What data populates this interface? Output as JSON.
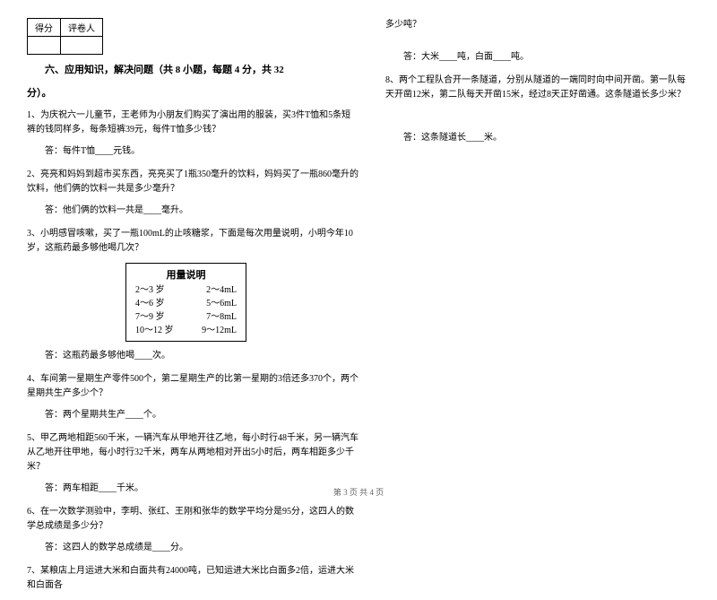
{
  "scoreTable": {
    "col1": "得分",
    "col2": "评卷人"
  },
  "sectionTitle": "六、应用知识，解决问题（共 8 小题，每题 4 分，共 32",
  "pointsNote": "分）。",
  "q1": "1、为庆祝六一儿童节，王老师为小朋友们购买了演出用的服装，买3件T恤和5条短裤的钱同样多，每条短裤39元，每件T恤多少钱？",
  "a1": "答：每件T恤____元钱。",
  "q2": "2、亮亮和妈妈到超市买东西，亮亮买了1瓶350毫升的饮料，妈妈买了一瓶860毫升的饮料，他们俩的饮料一共是多少毫升？",
  "a2": "答：他们俩的饮料一共是____毫升。",
  "q3": "3、小明感冒咳嗽，买了一瓶100mL的止咳糖浆，下面是每次用量说明，小明今年10岁，这瓶药最多够他喝几次？",
  "dosage": {
    "title": "用量说明",
    "rows": [
      {
        "age": "2～3 岁",
        "amount": "2～4mL"
      },
      {
        "age": "4～6 岁",
        "amount": "5～6mL"
      },
      {
        "age": "7～9 岁",
        "amount": "7～8mL"
      },
      {
        "age": "10～12 岁",
        "amount": "9～12mL"
      }
    ]
  },
  "a3": "答：这瓶药最多够他喝____次。",
  "q4": "4、车间第一星期生产零件500个，第二星期生产的比第一星期的3倍还多370个，两个星期共生产多少个？",
  "a4": "答：两个星期共生产____个。",
  "q5": "5、甲乙两地相距560千米，一辆汽车从甲地开往乙地，每小时行48千米，另一辆汽车从乙地开往甲地，每小时行32千米，两车从两地相对开出5小时后，两车相距多少千米？",
  "a5": "答：两车相距____千米。",
  "q6": "6、在一次数学测验中，李明、张红、王刚和张华的数学平均分是95分，这四人的数学总成绩是多少分？",
  "a6": "答：这四人的数学总成绩是____分。",
  "q7": "7、某粮店上月运进大米和白面共有24000吨，已知运进大米比白面多2倍，运进大米和白面各",
  "q7b": "多少吨？",
  "a7": "答：大米____吨，白面____吨。",
  "q8": "8、两个工程队合开一条隧道，分别从隧道的一端同时向中间开凿。第一队每天开凿12米，第二队每天开凿15米，经过8天正好凿通。这条隧道长多少米？",
  "a8": "答：这条隧道长____米。",
  "footer": "第 3 页 共 4 页"
}
